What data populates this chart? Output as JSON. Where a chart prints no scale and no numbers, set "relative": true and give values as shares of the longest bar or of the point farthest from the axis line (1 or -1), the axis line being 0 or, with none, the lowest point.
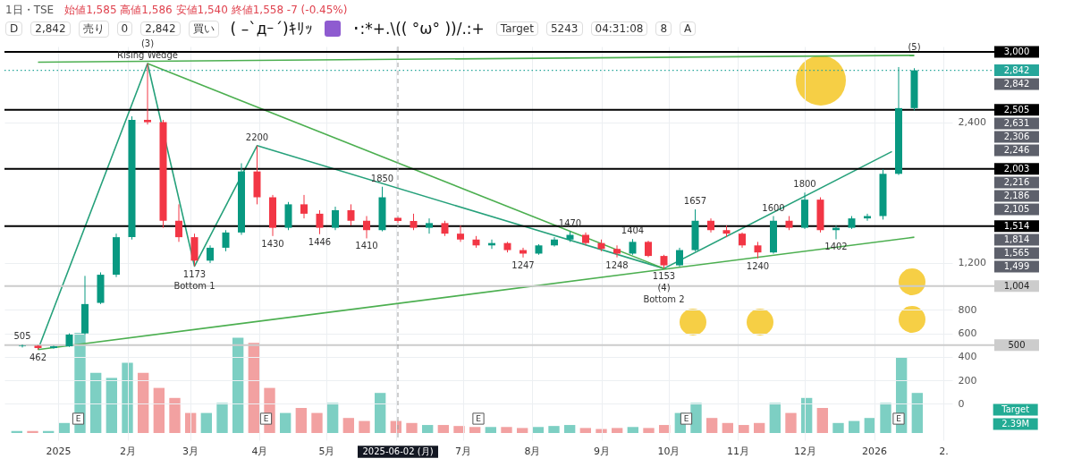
{
  "chart_data": [
    {
      "type": "candlestick",
      "title": "1日・TSE",
      "subtitle": "始値1,585 高値1,586 安値1,540 終値1,558 -7 (-0.45%)",
      "x": [
        "2024-12-16",
        "2024-12-23",
        "2024-12-30",
        "2025-01-06",
        "2025-01-13",
        "2025-01-20",
        "2025-01-27",
        "2025-02-03",
        "2025-02-10",
        "2025-02-17",
        "2025-02-24",
        "2025-03-03",
        "2025-03-10",
        "2025-03-17",
        "2025-03-24",
        "2025-03-31",
        "2025-04-07",
        "2025-04-14",
        "2025-04-21",
        "2025-04-28",
        "2025-05-05",
        "2025-05-12",
        "2025-05-19",
        "2025-05-26",
        "2025-06-02",
        "2025-06-09",
        "2025-06-16",
        "2025-06-23",
        "2025-06-30",
        "2025-07-07",
        "2025-07-14",
        "2025-07-21",
        "2025-07-28",
        "2025-08-04",
        "2025-08-11",
        "2025-08-18",
        "2025-08-25",
        "2025-09-01",
        "2025-09-08",
        "2025-09-15",
        "2025-09-22",
        "2025-09-29",
        "2025-10-06",
        "2025-10-13",
        "2025-10-20",
        "2025-10-27",
        "2025-11-03",
        "2025-11-10",
        "2025-11-17",
        "2025-11-24",
        "2025-12-01",
        "2025-12-08",
        "2025-12-15",
        "2025-12-22",
        "2025-12-29",
        "2026-01-05",
        "2026-01-12",
        "2026-01-19"
      ],
      "ohlc": [
        [
          490,
          505,
          480,
          495
        ],
        [
          495,
          500,
          462,
          475
        ],
        [
          475,
          495,
          470,
          490
        ],
        [
          490,
          600,
          485,
          590
        ],
        [
          600,
          1090,
          590,
          850
        ],
        [
          860,
          1120,
          850,
          1100
        ],
        [
          1100,
          1450,
          1080,
          1420
        ],
        [
          1420,
          2450,
          1400,
          2420
        ],
        [
          2420,
          2900,
          2380,
          2400
        ],
        [
          2400,
          2420,
          1500,
          1560
        ],
        [
          1560,
          1700,
          1380,
          1420
        ],
        [
          1420,
          1450,
          1173,
          1220
        ],
        [
          1220,
          1350,
          1200,
          1330
        ],
        [
          1330,
          1480,
          1300,
          1460
        ],
        [
          1460,
          2050,
          1440,
          1980
        ],
        [
          1980,
          2200,
          1700,
          1760
        ],
        [
          1760,
          1780,
          1430,
          1500
        ],
        [
          1500,
          1720,
          1480,
          1700
        ],
        [
          1700,
          1780,
          1580,
          1620
        ],
        [
          1620,
          1650,
          1446,
          1500
        ],
        [
          1500,
          1680,
          1480,
          1650
        ],
        [
          1650,
          1700,
          1520,
          1560
        ],
        [
          1560,
          1600,
          1410,
          1480
        ],
        [
          1480,
          1850,
          1470,
          1760
        ],
        [
          1585,
          1586,
          1540,
          1558
        ],
        [
          1558,
          1620,
          1480,
          1500
        ],
        [
          1500,
          1580,
          1450,
          1540
        ],
        [
          1540,
          1560,
          1430,
          1450
        ],
        [
          1450,
          1520,
          1380,
          1400
        ],
        [
          1400,
          1430,
          1330,
          1350
        ],
        [
          1350,
          1400,
          1320,
          1370
        ],
        [
          1370,
          1380,
          1290,
          1310
        ],
        [
          1310,
          1330,
          1247,
          1280
        ],
        [
          1280,
          1360,
          1270,
          1350
        ],
        [
          1350,
          1420,
          1340,
          1400
        ],
        [
          1400,
          1470,
          1380,
          1440
        ],
        [
          1440,
          1460,
          1350,
          1370
        ],
        [
          1370,
          1400,
          1300,
          1320
        ],
        [
          1320,
          1350,
          1248,
          1280
        ],
        [
          1280,
          1404,
          1270,
          1380
        ],
        [
          1380,
          1390,
          1250,
          1260
        ],
        [
          1260,
          1270,
          1153,
          1180
        ],
        [
          1180,
          1330,
          1170,
          1310
        ],
        [
          1310,
          1657,
          1300,
          1560
        ],
        [
          1560,
          1580,
          1460,
          1480
        ],
        [
          1480,
          1520,
          1420,
          1450
        ],
        [
          1450,
          1460,
          1330,
          1350
        ],
        [
          1350,
          1380,
          1240,
          1290
        ],
        [
          1290,
          1600,
          1280,
          1560
        ],
        [
          1560,
          1600,
          1480,
          1500
        ],
        [
          1500,
          1800,
          1490,
          1740
        ],
        [
          1740,
          1760,
          1460,
          1480
        ],
        [
          1480,
          1520,
          1402,
          1500
        ],
        [
          1500,
          1600,
          1490,
          1580
        ],
        [
          1580,
          1620,
          1560,
          1600
        ],
        [
          1600,
          2000,
          1570,
          1960
        ],
        [
          1960,
          2870,
          1950,
          2520
        ],
        [
          2520,
          2860,
          2500,
          2842
        ]
      ],
      "series": [
        {
          "type": "line",
          "color": "#26a17b",
          "x": [
            "2024-12-23",
            "2025-02-10",
            "2025-03-03",
            "2025-03-31",
            "2025-09-29",
            "2026-01-09"
          ],
          "values": [
            462,
            2900,
            1173,
            2200,
            1153,
            2150
          ]
        },
        {
          "type": "line",
          "color": "#4caf50",
          "x": [
            "2024-12-23",
            "2026-01-19"
          ],
          "values": [
            2912,
            2970
          ]
        },
        {
          "type": "line",
          "color": "#4caf50",
          "x": [
            "2024-12-23",
            "2026-01-19"
          ],
          "values": [
            462,
            1420
          ]
        },
        {
          "type": "line",
          "color": "#4caf50",
          "x": [
            "2025-02-10",
            "2025-09-29"
          ],
          "values": [
            2900,
            1153
          ]
        }
      ],
      "xlim": [
        "2024-12-10",
        "2026-02-03"
      ],
      "xticks": [
        {
          "value": "2025-01-01",
          "label": "2025"
        },
        {
          "value": "2025-02-01",
          "label": "2月"
        },
        {
          "value": "2025-03-01",
          "label": "3月"
        },
        {
          "value": "2025-04-01",
          "label": "4月"
        },
        {
          "value": "2025-05-01",
          "label": "5月"
        },
        {
          "value": "2025-06-01",
          "label": null
        },
        {
          "value": "2025-07-01",
          "label": "7月"
        },
        {
          "value": "2025-08-01",
          "label": "8月"
        },
        {
          "value": "2025-09-01",
          "label": "9月"
        },
        {
          "value": "2025-10-01",
          "label": "10月"
        },
        {
          "value": "2025-11-01",
          "label": "11月"
        },
        {
          "value": "2025-12-01",
          "label": "12月"
        },
        {
          "value": "2026-01-01",
          "label": "2026"
        },
        {
          "value": "2026-02-01",
          "label": "2."
        }
      ],
      "ylim": [
        -310,
        3045
      ],
      "yticks": [
        0,
        200,
        400,
        600,
        800,
        {
          "value": 1200,
          "label": "1,200"
        },
        {
          "value": 2400,
          "label": "2,400"
        }
      ],
      "grid": true,
      "ref_lines": [
        {
          "axis": "y",
          "value": 3000,
          "label": "3,000",
          "color": "#000000"
        },
        {
          "axis": "y",
          "value": 2842,
          "label": "2,842",
          "color": "#26a69a",
          "line_style": "dotted"
        },
        {
          "axis": "y",
          "value": 2505,
          "label": "2,505",
          "color": "#000000"
        },
        {
          "axis": "y",
          "value": 2003,
          "label": "2,003",
          "color": "#000000"
        },
        {
          "axis": "y",
          "value": 1514,
          "label": "1,514",
          "color": "#000000"
        },
        {
          "axis": "y",
          "value": 1004,
          "label": "1,004",
          "color": "#cccccc"
        },
        {
          "axis": "y",
          "value": 500,
          "label": "500",
          "color": "#cccccc"
        },
        {
          "axis": "x",
          "value": "2025-06-02",
          "label": "2025-06-02 (月)",
          "color": "#9e9e9e",
          "line_style": "dashed"
        }
      ],
      "annotations": [
        "D",
        "2,842",
        "売り",
        "0",
        "2,842",
        "買い",
        "( –`дｰ´)ｷﾘｯ",
        "･:*+.\\(( °ω° ))/.:+",
        "Target",
        "5243",
        "04:31:08",
        "8",
        "A",
        {
          "text": "505",
          "x": "2024-12-16",
          "y": 505
        },
        {
          "text": "462",
          "x": "2024-12-23",
          "y": 462
        },
        {
          "text": "Rising Wedge",
          "x": "2025-02-10",
          "y": 2900
        },
        {
          "text": "(3)",
          "x": "2025-02-10",
          "y": 2900
        },
        {
          "text": "1173",
          "x": "2025-03-03",
          "y": 1173
        },
        {
          "text": "Bottom 1",
          "x": "2025-03-03",
          "y": 1173
        },
        {
          "text": "2200",
          "x": "2025-03-31",
          "y": 2200
        },
        {
          "text": "1430",
          "x": "2025-04-07",
          "y": 1430
        },
        {
          "text": "1446",
          "x": "2025-04-28",
          "y": 1446
        },
        {
          "text": "1410",
          "x": "2025-05-19",
          "y": 1410
        },
        {
          "text": "1850",
          "x": "2025-05-26",
          "y": 1850
        },
        {
          "text": "1247",
          "x": "2025-07-28",
          "y": 1247
        },
        {
          "text": "1470",
          "x": "2025-08-18",
          "y": 1470
        },
        {
          "text": "1248",
          "x": "2025-09-08",
          "y": 1248
        },
        {
          "text": "1404",
          "x": "2025-09-15",
          "y": 1404
        },
        {
          "text": "1153",
          "x": "2025-09-29",
          "y": 1153
        },
        {
          "text": "(4)",
          "x": "2025-09-29",
          "y": 1153
        },
        {
          "text": "Bottom 2",
          "x": "2025-09-29",
          "y": 1153
        },
        {
          "text": "1657",
          "x": "2025-10-13",
          "y": 1657
        },
        {
          "text": "1240",
          "x": "2025-11-10",
          "y": 1240
        },
        {
          "text": "1600",
          "x": "2025-11-17",
          "y": 1600
        },
        {
          "text": "1800",
          "x": "2025-12-01",
          "y": 1800
        },
        {
          "text": "1402",
          "x": "2025-12-15",
          "y": 1402
        },
        {
          "text": "(5)",
          "x": "2026-01-19",
          "y": 2970
        },
        {
          "text": "E",
          "x": "2025-01-10"
        },
        {
          "text": "E",
          "x": "2025-04-04"
        },
        {
          "text": "E",
          "x": "2025-07-08"
        },
        {
          "text": "E",
          "x": "2025-10-09"
        },
        {
          "text": "E",
          "x": "2026-01-12"
        }
      ]
    },
    {
      "type": "bar",
      "relative": true,
      "categories": [
        null,
        null,
        null,
        null,
        null,
        null,
        null,
        null,
        null,
        null,
        null,
        null,
        null,
        null,
        null,
        null,
        null,
        null,
        null,
        null,
        null,
        null,
        null,
        null,
        null,
        null,
        null,
        null,
        null,
        null,
        null,
        null,
        null,
        null,
        null,
        null,
        null,
        null,
        null,
        null,
        null,
        null,
        null,
        null,
        null,
        null,
        null,
        null,
        null,
        null,
        null,
        null,
        null,
        null,
        null,
        null,
        null,
        null
      ],
      "values": [
        0.02,
        0.02,
        0.02,
        0.1,
        1,
        0.6,
        0.55,
        0.7,
        0.6,
        0.45,
        0.35,
        0.2,
        0.2,
        0.3,
        0.95,
        0.9,
        0.45,
        0.2,
        0.25,
        0.2,
        0.3,
        0.15,
        0.12,
        0.4,
        0.12,
        0.1,
        0.08,
        0.08,
        0.07,
        0.06,
        0.06,
        0.06,
        0.05,
        0.06,
        0.07,
        0.08,
        0.05,
        0.04,
        0.05,
        0.06,
        0.05,
        0.08,
        0.2,
        0.3,
        0.15,
        0.1,
        0.08,
        0.1,
        0.3,
        0.2,
        0.35,
        0.25,
        0.1,
        0.12,
        0.15,
        0.3,
        0.75,
        0.4
      ],
      "colors": [
        "#7dcfc3",
        "#f2a1a1",
        "#7dcfc3",
        "#7dcfc3",
        "#7dcfc3",
        "#7dcfc3",
        "#7dcfc3",
        "#7dcfc3",
        "#f2a1a1",
        "#f2a1a1",
        "#f2a1a1",
        "#f2a1a1",
        "#7dcfc3",
        "#7dcfc3",
        "#7dcfc3",
        "#f2a1a1",
        "#f2a1a1",
        "#7dcfc3",
        "#f2a1a1",
        "#f2a1a1",
        "#7dcfc3",
        "#f2a1a1",
        "#f2a1a1",
        "#7dcfc3",
        "#f2a1a1",
        "#f2a1a1",
        "#7dcfc3",
        "#f2a1a1",
        "#f2a1a1",
        "#f2a1a1",
        "#7dcfc3",
        "#f2a1a1",
        "#f2a1a1",
        "#7dcfc3",
        "#7dcfc3",
        "#7dcfc3",
        "#f2a1a1",
        "#f2a1a1",
        "#f2a1a1",
        "#7dcfc3",
        "#f2a1a1",
        "#f2a1a1",
        "#7dcfc3",
        "#7dcfc3",
        "#f2a1a1",
        "#f2a1a1",
        "#f2a1a1",
        "#f2a1a1",
        "#7dcfc3",
        "#f2a1a1",
        "#7dcfc3",
        "#f2a1a1",
        "#7dcfc3",
        "#7dcfc3",
        "#7dcfc3",
        "#7dcfc3",
        "#7dcfc3",
        "#7dcfc3"
      ],
      "annotations": [
        "2.39M",
        "Target"
      ]
    },
    {
      "type": "other",
      "annotations": [
        "2,842",
        "2,631",
        "2,306",
        "2,246",
        "2,216",
        "2,186",
        "2,105",
        "1,814",
        "1,565",
        "1,499"
      ]
    }
  ]
}
